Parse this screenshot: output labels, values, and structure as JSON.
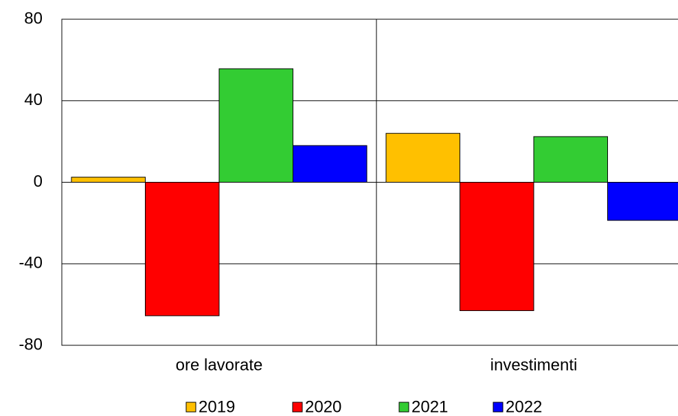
{
  "chart_data": {
    "type": "bar",
    "categories": [
      "ore lavorate",
      "investimenti"
    ],
    "series": [
      {
        "name": "2019",
        "color": "#ffc000",
        "values": [
          2.5,
          24
        ]
      },
      {
        "name": "2020",
        "color": "#ff0000",
        "values": [
          -65.5,
          -63
        ]
      },
      {
        "name": "2021",
        "color": "#33cc33",
        "values": [
          55.7,
          22.4
        ]
      },
      {
        "name": "2022",
        "color": "#0000ff",
        "values": [
          18,
          -18.7
        ]
      }
    ],
    "ylim": [
      -80,
      80
    ],
    "yticks": [
      -80,
      -40,
      0,
      40,
      80
    ],
    "grid": true
  }
}
